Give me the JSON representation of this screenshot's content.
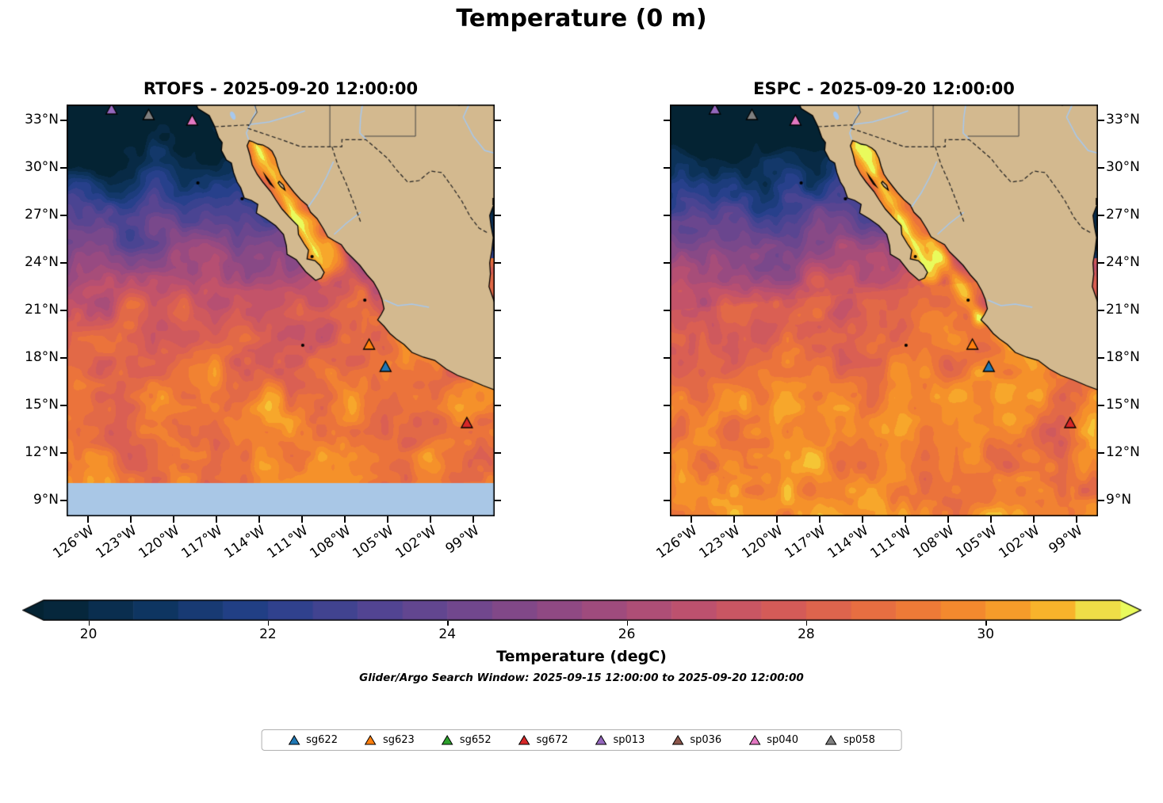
{
  "chart_data": {
    "type": "heatmap",
    "title": "Temperature (0 m)",
    "subtitle": "Glider/Argo Search Window: 2025-09-15 12:00:00 to 2025-09-20 12:00:00",
    "panels": [
      {
        "id": "rtofs",
        "title": "RTOFS - 2025-09-20 12:00:00",
        "label_side": "left",
        "missing_band": true
      },
      {
        "id": "espc",
        "title": "ESPC - 2025-09-20 12:00:00",
        "label_side": "right",
        "missing_band": false
      }
    ],
    "extent": {
      "lon_min": -127.5,
      "lon_max": -97.5,
      "lat_min": 8,
      "lat_max": 34
    },
    "lon_ticks": [
      -126,
      -123,
      -120,
      -117,
      -114,
      -111,
      -108,
      -105,
      -102,
      -99
    ],
    "lon_tick_labels": [
      "126°W",
      "123°W",
      "120°W",
      "117°W",
      "114°W",
      "111°W",
      "108°W",
      "105°W",
      "102°W",
      "99°W"
    ],
    "lat_ticks": [
      33,
      30,
      27,
      24,
      21,
      18,
      15,
      12,
      9
    ],
    "lat_tick_labels": [
      "33°N",
      "30°N",
      "27°N",
      "24°N",
      "21°N",
      "18°N",
      "15°N",
      "12°N",
      "9°N"
    ],
    "colorbar": {
      "label": "Temperature (degC)",
      "min": 19.5,
      "max": 31.5,
      "step": 0.5,
      "ticks": [
        20,
        22,
        24,
        26,
        28,
        30
      ],
      "extend": "both",
      "colormap": "thermal"
    },
    "colormap_stops": [
      {
        "t": 0.0,
        "c": "#042333"
      },
      {
        "t": 0.1,
        "c": "#0d355f"
      },
      {
        "t": 0.2,
        "c": "#24408a"
      },
      {
        "t": 0.3,
        "c": "#4d4493"
      },
      {
        "t": 0.4,
        "c": "#73478d"
      },
      {
        "t": 0.5,
        "c": "#984a81"
      },
      {
        "t": 0.6,
        "c": "#bc506f"
      },
      {
        "t": 0.7,
        "c": "#d85d55"
      },
      {
        "t": 0.8,
        "c": "#ed7539"
      },
      {
        "t": 0.88,
        "c": "#f69329"
      },
      {
        "t": 0.95,
        "c": "#f8ba2c"
      },
      {
        "t": 1.0,
        "c": "#e9fa5c"
      }
    ],
    "colors": {
      "land": "#d3b98f",
      "coastline": "#000000",
      "missing_data": "#a9c7e6",
      "river": "#a6c8ee",
      "border": "#222222"
    },
    "markers": [
      {
        "name": "sp013",
        "lon": -124.35,
        "lat": 33.65,
        "color": "#9467bd"
      },
      {
        "name": "sp058",
        "lon": -121.75,
        "lat": 33.3,
        "color": "#7f7f7f"
      },
      {
        "name": "sp040",
        "lon": -118.7,
        "lat": 32.95,
        "color": "#e377c2"
      },
      {
        "name": "sg623",
        "lon": -106.3,
        "lat": 18.8,
        "color": "#ff7f0e"
      },
      {
        "name": "sg622",
        "lon": -105.15,
        "lat": 17.4,
        "color": "#1f77b4"
      },
      {
        "name": "sg672",
        "lon": -99.45,
        "lat": 13.85,
        "color": "#d62728"
      }
    ],
    "legend": [
      {
        "label": "sg622",
        "color": "#1f77b4"
      },
      {
        "label": "sg623",
        "color": "#ff7f0e"
      },
      {
        "label": "sg652",
        "color": "#2ca02c"
      },
      {
        "label": "sg672",
        "color": "#d62728"
      },
      {
        "label": "sp013",
        "color": "#9467bd"
      },
      {
        "label": "sp036",
        "color": "#8c564b"
      },
      {
        "label": "sp040",
        "color": "#e377c2"
      },
      {
        "label": "sp058",
        "color": "#7f7f7f"
      }
    ]
  }
}
